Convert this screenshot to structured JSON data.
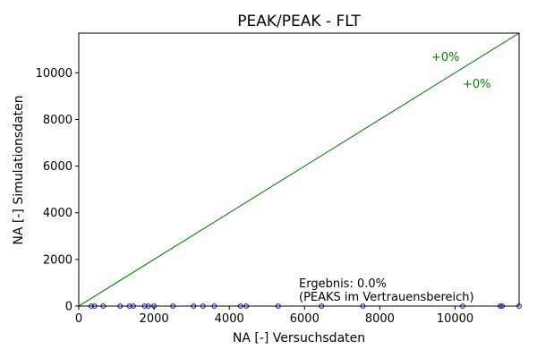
{
  "chart_data": {
    "type": "scatter",
    "title": "PEAK/PEAK - FLT",
    "xlabel": "NA [-] Versuchsdaten",
    "ylabel": "NA [-] Simulationsdaten",
    "xlim": [
      0,
      11700
    ],
    "ylim": [
      0,
      11700
    ],
    "xticks": [
      0,
      2000,
      4000,
      6000,
      8000,
      10000
    ],
    "yticks": [
      0,
      2000,
      4000,
      6000,
      8000,
      10000
    ],
    "grid": false,
    "reference_lines": [
      {
        "label": "+0%",
        "slope": 1.0,
        "color": "#008000"
      },
      {
        "label": "+0%",
        "slope": 1.0,
        "color": "#008000"
      }
    ],
    "series": [
      {
        "color": "#0000cc",
        "marker": "circle-open",
        "x": [
          330,
          420,
          650,
          1100,
          1350,
          1450,
          1750,
          1850,
          2000,
          2500,
          3050,
          3300,
          3600,
          4300,
          4450,
          5300,
          6450,
          7550,
          10200,
          11200,
          11250,
          11700
        ],
        "y": [
          0,
          0,
          0,
          0,
          0,
          0,
          0,
          0,
          0,
          0,
          0,
          0,
          0,
          0,
          0,
          0,
          0,
          0,
          0,
          0,
          0,
          0
        ]
      }
    ],
    "annotations": [
      {
        "text": "Ergebnis: 0.0%"
      },
      {
        "text": "(PEAKS im Vertrauensbereich)"
      }
    ]
  }
}
